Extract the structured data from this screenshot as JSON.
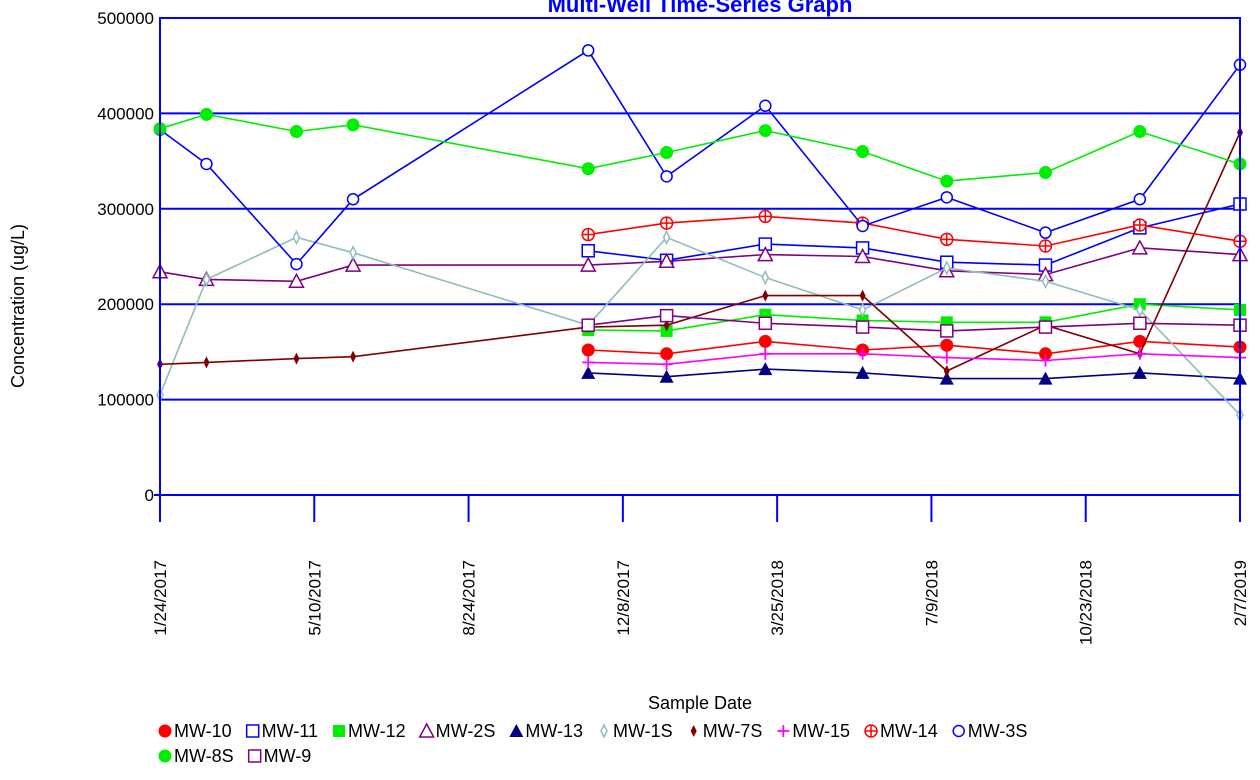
{
  "chart_data": {
    "type": "line",
    "title": "Multi-Well Time-Series Graph",
    "xlabel": "Sample Date",
    "ylabel": "Concentration (ug/L)",
    "ylim": [
      0,
      500000
    ],
    "yticks": [
      0,
      100000,
      200000,
      300000,
      400000,
      500000
    ],
    "xlim": [
      "2017-01-24",
      "2019-02-07"
    ],
    "xticks": [
      "1/24/2017",
      "5/10/2017",
      "8/24/2017",
      "12/8/2017",
      "3/25/2018",
      "7/9/2018",
      "10/23/2018",
      "2/7/2019"
    ],
    "grid": "horizontal",
    "legend": "bottom",
    "series": [
      {
        "name": "MW-10",
        "color": "#ff0000",
        "marker": "circle-filled",
        "x": [
          "2017-11-15",
          "2018-01-08",
          "2018-03-17",
          "2018-05-23",
          "2018-07-20",
          "2018-09-26",
          "2018-11-30",
          "2019-02-07"
        ],
        "y": [
          152000,
          148000,
          161000,
          152000,
          157000,
          148000,
          161000,
          155000
        ]
      },
      {
        "name": "MW-11",
        "color": "#0000ff",
        "marker": "square-open",
        "x": [
          "2017-11-15",
          "2018-01-08",
          "2018-03-17",
          "2018-05-23",
          "2018-07-20",
          "2018-09-26",
          "2018-11-30",
          "2019-02-07"
        ],
        "y": [
          256000,
          246000,
          263000,
          259000,
          244000,
          241000,
          280000,
          305000
        ]
      },
      {
        "name": "MW-12",
        "color": "#00ee00",
        "marker": "square-filled",
        "x": [
          "2017-11-15",
          "2018-01-08",
          "2018-03-17",
          "2018-05-23",
          "2018-07-20",
          "2018-09-26",
          "2018-11-30",
          "2019-02-07"
        ],
        "y": [
          173000,
          172000,
          189000,
          183000,
          181000,
          181000,
          200000,
          194000
        ]
      },
      {
        "name": "MW-2S",
        "color": "#800080",
        "marker": "triangle-open",
        "x": [
          "2017-01-24",
          "2017-02-25",
          "2017-04-28",
          "2017-06-06",
          "2017-11-15",
          "2018-01-08",
          "2018-03-17",
          "2018-05-23",
          "2018-07-20",
          "2018-09-26",
          "2018-11-30",
          "2019-02-07"
        ],
        "y": [
          234000,
          226000,
          224000,
          241000,
          241000,
          245000,
          252000,
          250000,
          235000,
          231000,
          259000,
          252000
        ]
      },
      {
        "name": "MW-13",
        "color": "#000080",
        "marker": "triangle-filled",
        "x": [
          "2017-11-15",
          "2018-01-08",
          "2018-03-17",
          "2018-05-23",
          "2018-07-20",
          "2018-09-26",
          "2018-11-30",
          "2019-02-07"
        ],
        "y": [
          128000,
          124000,
          132000,
          128000,
          122000,
          122000,
          128000,
          122000
        ]
      },
      {
        "name": "MW-1S",
        "color": "#8fbcbc",
        "marker": "diamond-thin",
        "x": [
          "2017-01-24",
          "2017-02-25",
          "2017-04-28",
          "2017-06-06",
          "2017-11-15",
          "2018-01-08",
          "2018-03-17",
          "2018-05-23",
          "2018-07-20",
          "2018-09-26",
          "2018-11-30",
          "2019-02-07"
        ],
        "y": [
          105000,
          226000,
          270000,
          254000,
          178000,
          270000,
          228000,
          194000,
          238000,
          224000,
          194000,
          84000
        ]
      },
      {
        "name": "MW-7S",
        "color": "#800000",
        "marker": "diamond-filled",
        "x": [
          "2017-01-24",
          "2017-02-25",
          "2017-04-28",
          "2017-06-06",
          "2017-11-15",
          "2018-01-08",
          "2018-03-17",
          "2018-05-23",
          "2018-07-20",
          "2018-09-26",
          "2018-11-30",
          "2019-02-07"
        ],
        "y": [
          137000,
          139000,
          143000,
          145000,
          176000,
          178000,
          209000,
          209000,
          130000,
          178000,
          148000,
          380000
        ]
      },
      {
        "name": "MW-15",
        "color": "#ff00ff",
        "marker": "plus",
        "x": [
          "2017-11-15",
          "2018-01-08",
          "2018-03-17",
          "2018-05-23",
          "2018-07-20",
          "2018-09-26",
          "2018-11-30",
          "2019-02-07"
        ],
        "y": [
          139000,
          137000,
          148000,
          148000,
          144000,
          141000,
          148000,
          144000
        ]
      },
      {
        "name": "MW-14",
        "color": "#ff0000",
        "marker": "circle-plus",
        "x": [
          "2017-11-15",
          "2018-01-08",
          "2018-03-17",
          "2018-05-23",
          "2018-07-20",
          "2018-09-26",
          "2018-11-30",
          "2019-02-07"
        ],
        "y": [
          273000,
          285000,
          292000,
          285000,
          268000,
          261000,
          283000,
          266000
        ]
      },
      {
        "name": "MW-3S",
        "color": "#0000ff",
        "marker": "circle-open",
        "x": [
          "2017-01-24",
          "2017-02-25",
          "2017-04-28",
          "2017-06-06",
          "2017-11-15",
          "2018-01-08",
          "2018-03-17",
          "2018-05-23",
          "2018-07-20",
          "2018-09-26",
          "2018-11-30",
          "2019-02-07"
        ],
        "y": [
          383000,
          347000,
          242000,
          310000,
          466000,
          334000,
          408000,
          282000,
          312000,
          275000,
          310000,
          451000
        ]
      },
      {
        "name": "MW-8S",
        "color": "#00ee00",
        "marker": "circle-filled",
        "x": [
          "2017-01-24",
          "2017-02-25",
          "2017-04-28",
          "2017-06-06",
          "2017-11-15",
          "2018-01-08",
          "2018-03-17",
          "2018-05-23",
          "2018-07-20",
          "2018-09-26",
          "2018-11-30",
          "2019-02-07"
        ],
        "y": [
          384000,
          399000,
          381000,
          388000,
          342000,
          359000,
          382000,
          360000,
          329000,
          338000,
          381000,
          347000
        ]
      },
      {
        "name": "MW-9",
        "color": "#800080",
        "marker": "square-open",
        "x": [
          "2017-11-15",
          "2018-01-08",
          "2018-03-17",
          "2018-05-23",
          "2018-07-20",
          "2018-09-26",
          "2018-11-30",
          "2019-02-07"
        ],
        "y": [
          178000,
          188000,
          180000,
          176000,
          172000,
          176000,
          180000,
          178000
        ]
      }
    ]
  }
}
